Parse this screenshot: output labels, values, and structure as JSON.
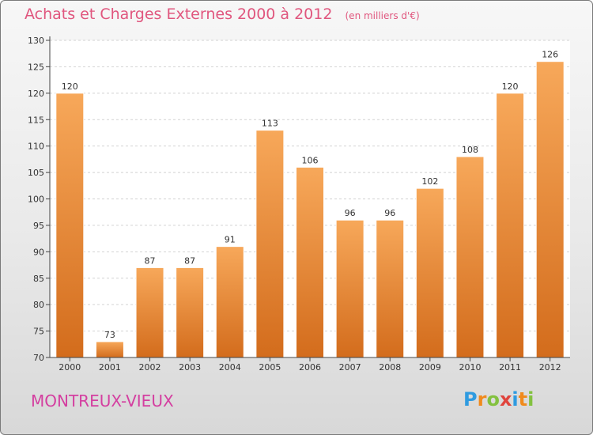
{
  "header": {
    "title": "Achats et Charges Externes 2000 à 2012",
    "unit": "(en milliers d'€)"
  },
  "footer": {
    "commune": "MONTREUX-VIEUX",
    "logo_text": "Proxiti"
  },
  "colors": {
    "title": "#e0567e",
    "commune": "#d43fa0",
    "bar_light": "#f7a85a",
    "bar_dark": "#d36c1c"
  },
  "chart_data": {
    "type": "bar",
    "categories": [
      "2000",
      "2001",
      "2002",
      "2003",
      "2004",
      "2005",
      "2006",
      "2007",
      "2008",
      "2009",
      "2010",
      "2011",
      "2012"
    ],
    "values": [
      120,
      73,
      87,
      87,
      91,
      113,
      106,
      96,
      96,
      102,
      108,
      120,
      126
    ],
    "data_labels": [
      "120",
      "73",
      "87",
      "87",
      "91",
      "113",
      "106",
      "96",
      "96",
      "102",
      "108",
      "120",
      "126"
    ],
    "ylim": [
      70,
      130
    ],
    "yticks": [
      70,
      75,
      80,
      85,
      90,
      95,
      100,
      105,
      110,
      115,
      120,
      125,
      130
    ],
    "grid": true
  }
}
